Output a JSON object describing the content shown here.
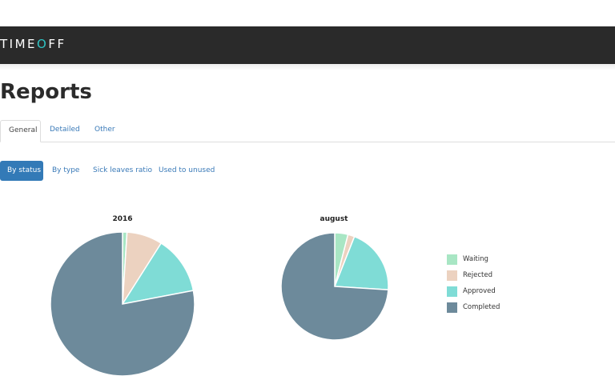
{
  "app": {
    "logo_prefix": "TIME",
    "logo_accent": "O",
    "logo_suffix": "FF"
  },
  "page_title": "Reports",
  "tabs": [
    {
      "label": "General",
      "active": true
    },
    {
      "label": "Detailed",
      "active": false
    },
    {
      "label": "Other",
      "active": false
    }
  ],
  "pills": [
    {
      "label": "By status",
      "active": true
    },
    {
      "label": "By type",
      "active": false
    },
    {
      "label": "Sick leaves ratio",
      "active": false
    },
    {
      "label": "Used to unused",
      "active": false
    }
  ],
  "colors": {
    "Waiting": "#a8e6c4",
    "Rejected": "#ecd2c0",
    "Approved": "#7fdcd6",
    "Completed": "#6d8a9b"
  },
  "chart_data": [
    {
      "type": "pie",
      "title": "2016",
      "categories": [
        "Waiting",
        "Rejected",
        "Approved",
        "Completed"
      ],
      "values": [
        1,
        8,
        13,
        78
      ]
    },
    {
      "type": "pie",
      "title": "august",
      "categories": [
        "Waiting",
        "Rejected",
        "Approved",
        "Completed"
      ],
      "values": [
        4,
        2,
        20,
        74
      ],
      "legend": "right"
    }
  ],
  "legend": [
    {
      "label": "Waiting"
    },
    {
      "label": "Rejected"
    },
    {
      "label": "Approved"
    },
    {
      "label": "Completed"
    }
  ]
}
